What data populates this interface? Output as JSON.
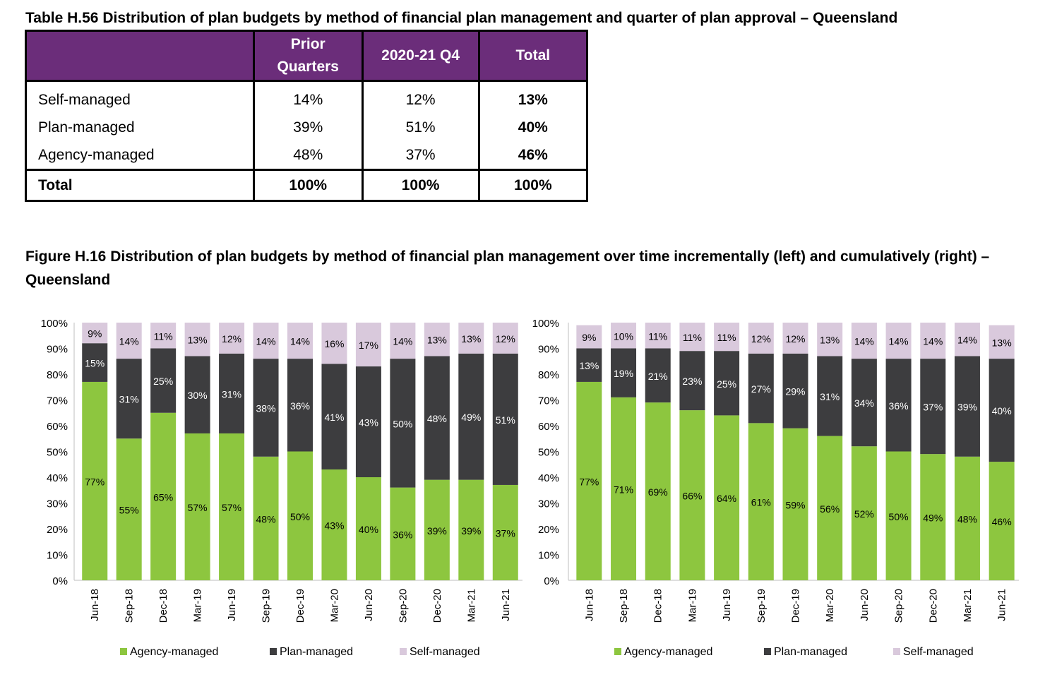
{
  "table": {
    "title": "Table H.56 Distribution of plan budgets by method of financial plan management and quarter of plan approval – Queensland",
    "columns": [
      "",
      "Prior Quarters",
      "2020-21 Q4",
      "Total"
    ],
    "rows": [
      {
        "label": "Self-managed",
        "prior": "14%",
        "q4": "12%",
        "total": "13%"
      },
      {
        "label": "Plan-managed",
        "prior": "39%",
        "q4": "51%",
        "total": "40%"
      },
      {
        "label": "Agency-managed",
        "prior": "48%",
        "q4": "37%",
        "total": "46%"
      }
    ],
    "total_row": {
      "label": "Total",
      "prior": "100%",
      "q4": "100%",
      "total": "100%"
    }
  },
  "figure": {
    "title": "Figure H.16 Distribution of plan budgets by method of financial plan management over time incrementally (left) and cumulatively (right) – Queensland"
  },
  "colors": {
    "agency": "#8dc63f",
    "plan": "#3d3d3f",
    "self": "#d9c9dc",
    "table_header": "#6b2d7a"
  },
  "chart_data": [
    {
      "type": "bar",
      "stacked": true,
      "title": "",
      "categories": [
        "Jun-18",
        "Sep-18",
        "Dec-18",
        "Mar-19",
        "Jun-19",
        "Sep-19",
        "Dec-19",
        "Mar-20",
        "Jun-20",
        "Sep-20",
        "Dec-20",
        "Mar-21",
        "Jun-21"
      ],
      "series": [
        {
          "name": "Agency-managed",
          "values": [
            77,
            55,
            65,
            57,
            57,
            48,
            50,
            43,
            40,
            36,
            39,
            39,
            37
          ]
        },
        {
          "name": "Plan-managed",
          "values": [
            15,
            31,
            25,
            30,
            31,
            38,
            36,
            41,
            43,
            50,
            48,
            49,
            51
          ]
        },
        {
          "name": "Self-managed",
          "values": [
            9,
            14,
            11,
            13,
            12,
            14,
            14,
            16,
            17,
            14,
            13,
            13,
            12
          ]
        }
      ],
      "yticks": [
        "0%",
        "10%",
        "20%",
        "30%",
        "40%",
        "50%",
        "60%",
        "70%",
        "80%",
        "90%",
        "100%"
      ],
      "ylim": [
        0,
        100
      ],
      "legend": "bottom"
    },
    {
      "type": "bar",
      "stacked": true,
      "title": "",
      "categories": [
        "Jun-18",
        "Sep-18",
        "Dec-18",
        "Mar-19",
        "Jun-19",
        "Sep-19",
        "Dec-19",
        "Mar-20",
        "Jun-20",
        "Sep-20",
        "Dec-20",
        "Mar-21",
        "Jun-21"
      ],
      "series": [
        {
          "name": "Agency-managed",
          "values": [
            77,
            71,
            69,
            66,
            64,
            61,
            59,
            56,
            52,
            50,
            49,
            48,
            46
          ]
        },
        {
          "name": "Plan-managed",
          "values": [
            13,
            19,
            21,
            23,
            25,
            27,
            29,
            31,
            34,
            36,
            37,
            39,
            40
          ]
        },
        {
          "name": "Self-managed",
          "values": [
            9,
            10,
            11,
            11,
            11,
            12,
            12,
            13,
            14,
            14,
            14,
            14,
            13
          ]
        }
      ],
      "yticks": [
        "0%",
        "10%",
        "20%",
        "30%",
        "40%",
        "50%",
        "60%",
        "70%",
        "80%",
        "90%",
        "100%"
      ],
      "ylim": [
        0,
        100
      ],
      "legend": "bottom"
    }
  ]
}
